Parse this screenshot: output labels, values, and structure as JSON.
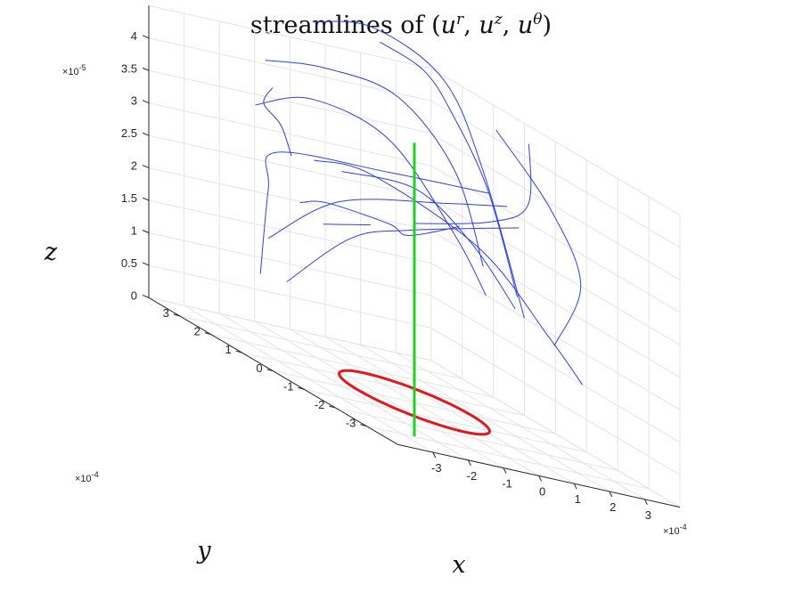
{
  "chart_data": {
    "type": "line",
    "title": "streamlines of (u^r, u^z, u^θ)",
    "title_parts": {
      "lead": "streamlines of (",
      "u": "u",
      "r": "r",
      "z": "z",
      "theta": "θ",
      "sep": ", ",
      "close": ")"
    },
    "xlabel": "x",
    "ylabel": "y",
    "zlabel": "z",
    "x_exponent": {
      "base": "×10",
      "power": "-4"
    },
    "y_exponent": {
      "base": "×10",
      "power": "-4"
    },
    "z_exponent": {
      "base": "×10",
      "power": "-5"
    },
    "xlim": [
      -4,
      4
    ],
    "ylim": [
      -4,
      4
    ],
    "zlim": [
      0,
      4.5
    ],
    "x_ticks": [
      "-3",
      "-2",
      "-1",
      "0",
      "1",
      "2",
      "3"
    ],
    "y_ticks": [
      "-3",
      "-2",
      "-1",
      "0",
      "1",
      "2",
      "3"
    ],
    "z_ticks": [
      "0",
      "0.5",
      "1",
      "1.5",
      "2",
      "2.5",
      "3",
      "3.5",
      "4"
    ],
    "grid": true,
    "colors": {
      "streamline": "#2f3fe8",
      "circle": "#e8141b",
      "axis_line": "#1ed21e"
    },
    "ring": {
      "radius": 1.6,
      "z": 0,
      "color": "red"
    },
    "vertical_line": {
      "x": 0,
      "y": 0,
      "z_range": [
        0,
        4
      ],
      "color": "green"
    },
    "series": [
      {
        "points": [
          [
            -1.5,
            2.4,
            1.0
          ],
          [
            -0.2,
            1.8,
            2.0
          ],
          [
            0.6,
            0.8,
            2.5
          ],
          [
            2.7,
            -0.3,
            3.1
          ]
        ]
      },
      {
        "points": [
          [
            -1.5,
            3.0,
            1.5
          ],
          [
            0.1,
            2.5,
            2.4
          ],
          [
            1.8,
            1.0,
            3.0
          ],
          [
            2.8,
            0.2,
            3.3
          ]
        ]
      },
      {
        "points": [
          [
            -2.6,
            2.0,
            1.1
          ],
          [
            -2.2,
            2.2,
            2.4
          ],
          [
            -1.0,
            3.3,
            2.8
          ],
          [
            1.6,
            2.6,
            3.0
          ],
          [
            3.0,
            1.0,
            3.3
          ]
        ]
      },
      {
        "points": [
          [
            -2.8,
            0.5,
            2.6
          ],
          [
            -1.6,
            1.0,
            2.6
          ],
          [
            0.6,
            1.5,
            2.4
          ],
          [
            1.6,
            2.0,
            2.2
          ],
          [
            2.6,
            1.5,
            2.6
          ]
        ]
      },
      {
        "points": [
          [
            -2.4,
            0.5,
            3.3
          ],
          [
            -1.4,
            -0.2,
            3.4
          ],
          [
            0.8,
            -1.2,
            2.8
          ],
          [
            2.2,
            -1.8,
            1.8
          ],
          [
            3.0,
            -2.0,
            1.2
          ]
        ]
      },
      {
        "points": [
          [
            -1.0,
            1.2,
            3.1
          ],
          [
            0.5,
            0.5,
            3.2
          ],
          [
            1.3,
            -0.4,
            2.7
          ],
          [
            1.8,
            -1.2,
            2.0
          ]
        ]
      },
      {
        "points": [
          [
            -2.3,
            2.5,
            3.6
          ],
          [
            -0.8,
            2.4,
            3.9
          ],
          [
            0.6,
            1.5,
            3.7
          ],
          [
            1.3,
            0.2,
            2.7
          ],
          [
            1.5,
            -0.6,
            2.0
          ]
        ]
      },
      {
        "points": [
          [
            -1.4,
            3.2,
            4.2
          ],
          [
            0.2,
            3.1,
            4.3
          ],
          [
            1.8,
            2.6,
            4.2
          ],
          [
            2.2,
            1.2,
            3.5
          ],
          [
            1.6,
            -0.4,
            2.4
          ]
        ]
      },
      {
        "points": [
          [
            2.2,
            3.6,
            4.8
          ],
          [
            3.0,
            3.1,
            4.6
          ],
          [
            3.0,
            2.2,
            4.2
          ],
          [
            2.7,
            0.7,
            3.4
          ],
          [
            2.3,
            -0.7,
            2.1
          ]
        ]
      },
      {
        "points": [
          [
            0.2,
            3.5,
            4.9
          ],
          [
            2.0,
            3.6,
            5.0
          ],
          [
            3.2,
            2.7,
            4.6
          ],
          [
            3.0,
            1.2,
            3.6
          ],
          [
            2.5,
            -0.7,
            1.8
          ]
        ]
      },
      {
        "points": [
          [
            3.6,
            0.4,
            4.3
          ],
          [
            3.3,
            0.1,
            3.4
          ],
          [
            2.3,
            0.2,
            3.0
          ],
          [
            0.8,
            0.9,
            2.6
          ]
        ]
      },
      {
        "points": [
          [
            3.2,
            1.0,
            4.3
          ],
          [
            3.0,
            -1.0,
            3.6
          ],
          [
            2.6,
            -2.4,
            2.8
          ],
          [
            2.2,
            -2.0,
            1.7
          ]
        ]
      },
      {
        "points": [
          [
            -2.6,
            1.0,
            3.2
          ],
          [
            -2.2,
            1.8,
            3.5
          ],
          [
            -1.8,
            2.8,
            3.6
          ],
          [
            -1.2,
            3.2,
            3.8
          ]
        ]
      },
      {
        "points": [
          [
            -2.4,
            0.2,
            2.4
          ],
          [
            -1.6,
            -0.2,
            2.6
          ],
          [
            -0.8,
            0.5,
            2.5
          ]
        ]
      }
    ]
  }
}
